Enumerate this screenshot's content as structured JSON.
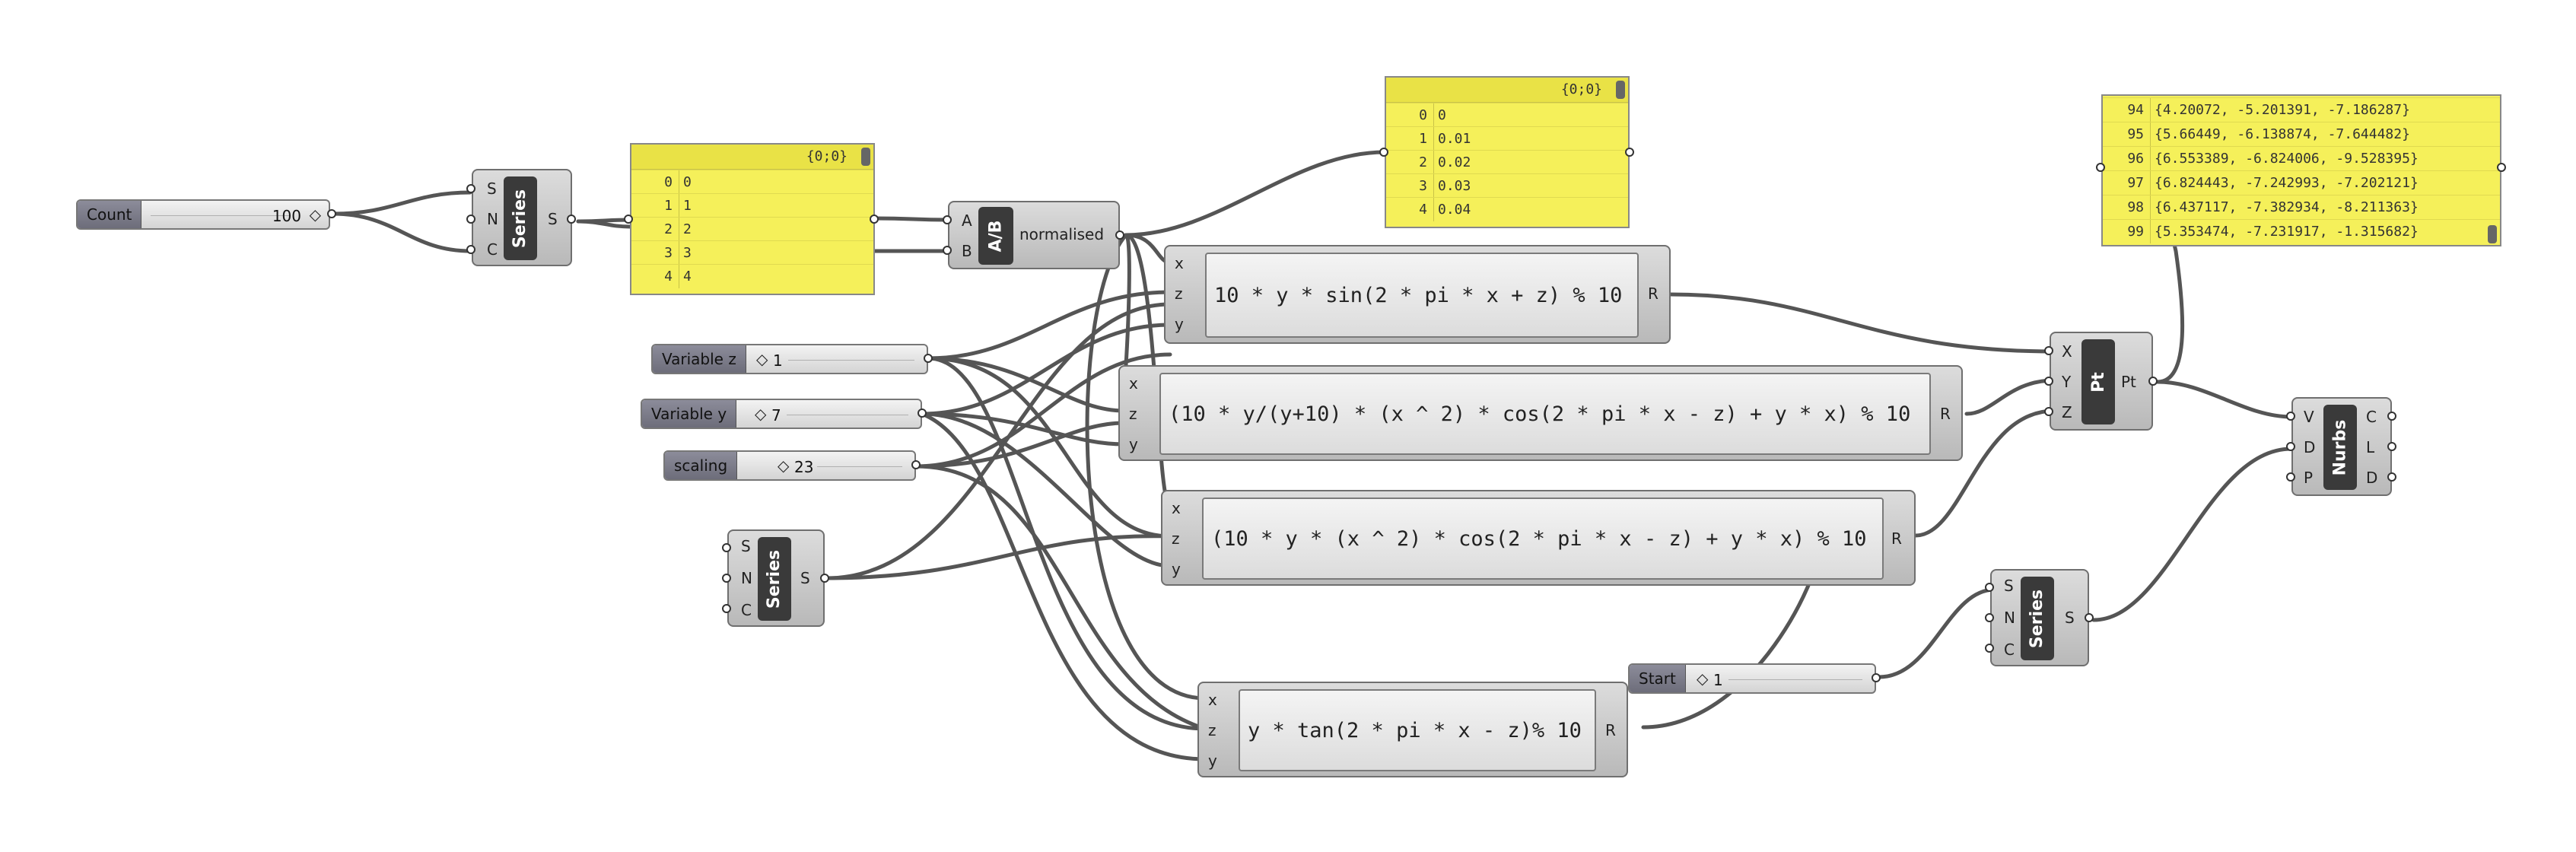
{
  "colors": {
    "panel": "#f5f05a",
    "component": "#c8c8c8",
    "wire": "#555555",
    "slider_name": "#7d7d8b"
  },
  "sliders": {
    "count": {
      "name": "Count",
      "value": "100"
    },
    "var_z": {
      "name": "Variable z",
      "value": "1"
    },
    "var_y": {
      "name": "Variable y",
      "value": "7"
    },
    "scaling": {
      "name": "scaling",
      "value": "23"
    },
    "start": {
      "name": "Start",
      "value": "1"
    }
  },
  "series": {
    "label": "Series",
    "inputs": [
      "S",
      "N",
      "C"
    ],
    "output": "S"
  },
  "ab": {
    "label": "A/B",
    "inputs": [
      "A",
      "B"
    ],
    "output": "normalised"
  },
  "pt": {
    "label": "Pt",
    "inputs": [
      "X",
      "Y",
      "Z"
    ],
    "output": "Pt"
  },
  "nurbs": {
    "label": "Nurbs",
    "inputs": [
      "V",
      "D",
      "P"
    ],
    "outputs": [
      "C",
      "L",
      "D"
    ]
  },
  "expressions": {
    "inputs": [
      "x",
      "z",
      "y"
    ],
    "output": "R",
    "e1": "10 * y * sin(2 * pi * x + z) % 10",
    "e2": "(10 * y/(y+10) * (x ^ 2) * cos(2 * pi * x - z) + y * x) % 10",
    "e3": "(10 * y * (x ^ 2) * cos(2 * pi * x - z) + y * x) % 10",
    "e4": "y * tan(2 * pi * x - z)% 10"
  },
  "panel_series": {
    "header": "{0;0}",
    "rows": [
      {
        "i": "0",
        "t": "0"
      },
      {
        "i": "1",
        "t": "1"
      },
      {
        "i": "2",
        "t": "2"
      },
      {
        "i": "3",
        "t": "3"
      },
      {
        "i": "4",
        "t": "4"
      }
    ]
  },
  "panel_norm": {
    "header": "{0;0}",
    "rows": [
      {
        "i": "0",
        "t": "0"
      },
      {
        "i": "1",
        "t": "0.01"
      },
      {
        "i": "2",
        "t": "0.02"
      },
      {
        "i": "3",
        "t": "0.03"
      },
      {
        "i": "4",
        "t": "0.04"
      }
    ]
  },
  "panel_pts": {
    "rows": [
      {
        "i": "94",
        "t": "{4.20072, -5.201391, -7.186287}"
      },
      {
        "i": "95",
        "t": "{5.66449, -6.138874, -7.644482}"
      },
      {
        "i": "96",
        "t": "{6.553389, -6.824006, -9.528395}"
      },
      {
        "i": "97",
        "t": "{6.824443, -7.242993, -7.202121}"
      },
      {
        "i": "98",
        "t": "{6.437117, -7.382934, -8.211363}"
      },
      {
        "i": "99",
        "t": "{5.353474, -7.231917, -1.315682}"
      }
    ]
  }
}
